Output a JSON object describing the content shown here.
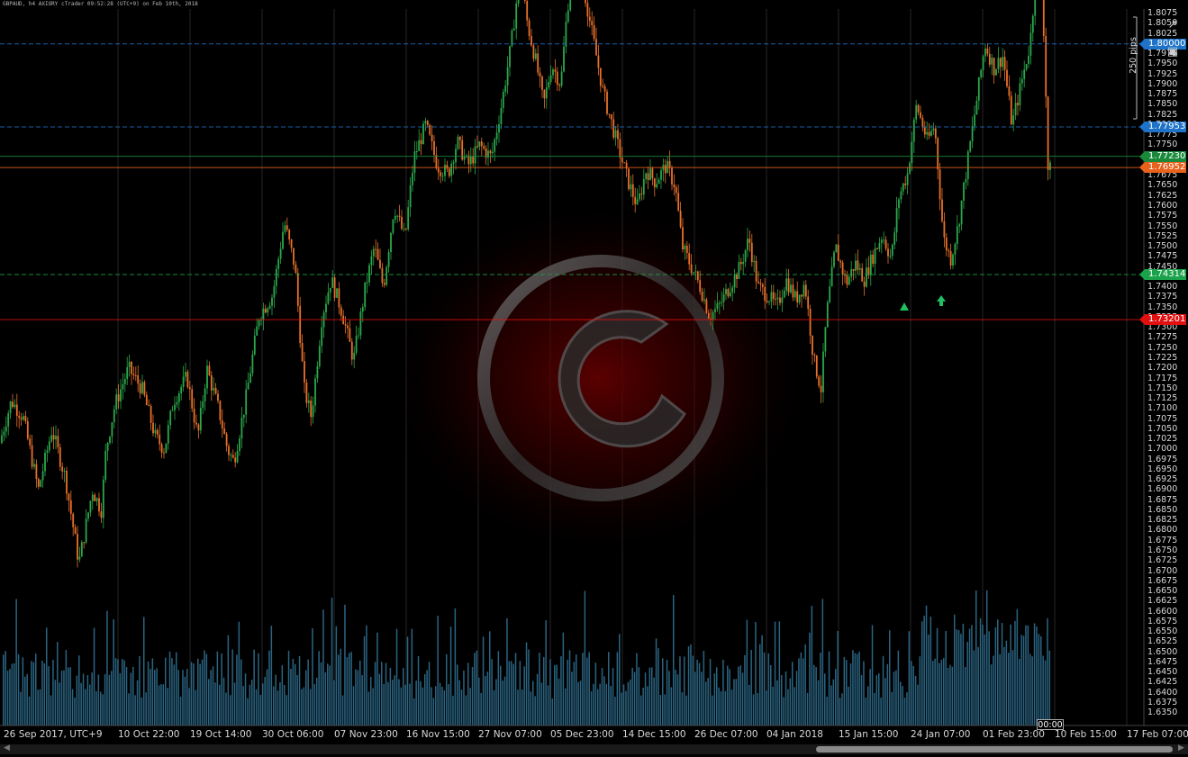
{
  "header": {
    "title": "GBPAUD, h4 AXIORY cTrader 09:52:28 (UTC+9) on Feb 10th, 2018"
  },
  "price_axis": {
    "ticks": [
      "1.8075",
      "1.8050",
      "1.8025",
      "1.8000",
      "1.7975",
      "1.7950",
      "1.7925",
      "1.7900",
      "1.7875",
      "1.7850",
      "1.7825",
      "1.7800",
      "1.7775",
      "1.7750",
      "1.7725",
      "1.7700",
      "1.7675",
      "1.7650",
      "1.7625",
      "1.7600",
      "1.7575",
      "1.7550",
      "1.7525",
      "1.7500",
      "1.7475",
      "1.7450",
      "1.7425",
      "1.7400",
      "1.7375",
      "1.7350",
      "1.7325",
      "1.7300",
      "1.7275",
      "1.7250",
      "1.7225",
      "1.7200",
      "1.7175",
      "1.7150",
      "1.7125",
      "1.7100",
      "1.7075",
      "1.7050",
      "1.7025",
      "1.7000",
      "1.6975",
      "1.6950",
      "1.6925",
      "1.6900",
      "1.6875",
      "1.6850",
      "1.6825",
      "1.6800",
      "1.6775",
      "1.6750",
      "1.6725",
      "1.6700",
      "1.6675",
      "1.6650",
      "1.6625",
      "1.6600",
      "1.6575",
      "1.6550",
      "1.6525",
      "1.6500",
      "1.6475",
      "1.6450",
      "1.6425",
      "1.6400",
      "1.6375",
      "1.6350"
    ]
  },
  "time_axis": {
    "ticks": [
      "26 Sep 2017, UTC+9",
      "10 Oct 22:00",
      "19 Oct 14:00",
      "30 Oct 06:00",
      "07 Nov 23:00",
      "16 Nov 15:00",
      "27 Nov 07:00",
      "05 Dec 23:00",
      "14 Dec 15:00",
      "26 Dec 07:00",
      "04 Jan 2018",
      "15 Jan 15:00",
      "24 Jan 07:00",
      "01 Feb 23:00",
      "10 Feb 15:00",
      "17 Feb 07:00"
    ]
  },
  "levels": [
    {
      "price": 1.8,
      "label": "1.80000",
      "color": "#1e73c8",
      "style": "dashed"
    },
    {
      "price": 1.77953,
      "label": "1.77953",
      "color": "#1e73c8",
      "style": "dashed"
    },
    {
      "price": 1.7723,
      "label": "1.77230",
      "color": "#1a8a3a",
      "style": "solid"
    },
    {
      "price": 1.76952,
      "label": "1.76952",
      "color": "#e8621c",
      "style": "solid"
    },
    {
      "price": 1.74314,
      "label": "1.74314",
      "color": "#1aa34a",
      "style": "dashed"
    },
    {
      "price": 1.73201,
      "label": "1.73201",
      "color": "#e01010",
      "style": "solid"
    }
  ],
  "ruler": {
    "label": "250 pips"
  },
  "time_marker": {
    "label": "00:00"
  },
  "icons": {
    "detach": "external-link-icon",
    "screenshot": "camera-icon"
  },
  "colors": {
    "bull": "#2aa84a",
    "bear": "#e8702a",
    "volume": "#2f6f90",
    "grid": "#262626"
  },
  "chart_data": {
    "type": "candlestick",
    "symbol": "GBPAUD",
    "timeframe": "h4",
    "ylim": [
      1.6335,
      1.8075
    ],
    "path": [
      [
        0,
        1.7
      ],
      [
        15,
        1.712
      ],
      [
        28,
        1.708
      ],
      [
        45,
        1.69
      ],
      [
        60,
        1.705
      ],
      [
        75,
        1.693
      ],
      [
        90,
        1.672
      ],
      [
        105,
        1.69
      ],
      [
        115,
        1.685
      ],
      [
        120,
        1.7
      ],
      [
        130,
        1.711
      ],
      [
        145,
        1.72
      ],
      [
        160,
        1.715
      ],
      [
        175,
        1.703
      ],
      [
        185,
        1.7
      ],
      [
        195,
        1.712
      ],
      [
        210,
        1.718
      ],
      [
        222,
        1.703
      ],
      [
        232,
        1.72
      ],
      [
        245,
        1.71
      ],
      [
        255,
        1.7
      ],
      [
        262,
        1.697
      ],
      [
        275,
        1.712
      ],
      [
        290,
        1.733
      ],
      [
        305,
        1.738
      ],
      [
        318,
        1.756
      ],
      [
        330,
        1.745
      ],
      [
        340,
        1.715
      ],
      [
        348,
        1.708
      ],
      [
        360,
        1.733
      ],
      [
        370,
        1.742
      ],
      [
        382,
        1.734
      ],
      [
        395,
        1.722
      ],
      [
        408,
        1.74
      ],
      [
        418,
        1.75
      ],
      [
        428,
        1.74
      ],
      [
        440,
        1.76
      ],
      [
        452,
        1.752
      ],
      [
        462,
        1.772
      ],
      [
        475,
        1.78
      ],
      [
        488,
        1.77
      ],
      [
        500,
        1.768
      ],
      [
        510,
        1.776
      ],
      [
        522,
        1.77
      ],
      [
        535,
        1.775
      ],
      [
        548,
        1.772
      ],
      [
        560,
        1.786
      ],
      [
        570,
        1.8
      ],
      [
        580,
        1.818
      ],
      [
        588,
        1.805
      ],
      [
        598,
        1.795
      ],
      [
        606,
        1.785
      ],
      [
        615,
        1.795
      ],
      [
        625,
        1.79
      ],
      [
        632,
        1.808
      ],
      [
        642,
        1.826
      ],
      [
        652,
        1.812
      ],
      [
        662,
        1.8
      ],
      [
        672,
        1.788
      ],
      [
        682,
        1.78
      ],
      [
        692,
        1.772
      ],
      [
        700,
        1.766
      ],
      [
        710,
        1.76
      ],
      [
        720,
        1.769
      ],
      [
        730,
        1.766
      ],
      [
        742,
        1.77
      ],
      [
        752,
        1.765
      ],
      [
        760,
        1.75
      ],
      [
        770,
        1.745
      ],
      [
        780,
        1.74
      ],
      [
        790,
        1.733
      ],
      [
        800,
        1.735
      ],
      [
        812,
        1.74
      ],
      [
        824,
        1.745
      ],
      [
        834,
        1.752
      ],
      [
        844,
        1.74
      ],
      [
        855,
        1.738
      ],
      [
        865,
        1.735
      ],
      [
        875,
        1.742
      ],
      [
        886,
        1.737
      ],
      [
        896,
        1.741
      ],
      [
        906,
        1.722
      ],
      [
        914,
        1.715
      ],
      [
        920,
        1.733
      ],
      [
        930,
        1.75
      ],
      [
        942,
        1.741
      ],
      [
        952,
        1.746
      ],
      [
        962,
        1.742
      ],
      [
        972,
        1.748
      ],
      [
        982,
        1.753
      ],
      [
        992,
        1.747
      ],
      [
        1000,
        1.762
      ],
      [
        1010,
        1.768
      ],
      [
        1020,
        1.785
      ],
      [
        1032,
        1.776
      ],
      [
        1040,
        1.78
      ],
      [
        1050,
        1.752
      ],
      [
        1058,
        1.747
      ],
      [
        1066,
        1.755
      ],
      [
        1076,
        1.77
      ],
      [
        1086,
        1.785
      ],
      [
        1096,
        1.8
      ],
      [
        1106,
        1.794
      ],
      [
        1116,
        1.797
      ],
      [
        1126,
        1.78
      ],
      [
        1136,
        1.79
      ],
      [
        1146,
        1.8
      ],
      [
        1156,
        1.826
      ],
      [
        1162,
        1.8
      ],
      [
        1166,
        1.769
      ]
    ]
  }
}
